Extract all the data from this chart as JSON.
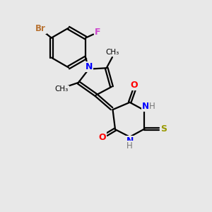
{
  "bg_color": "#e8e8e8",
  "bond_color": "#000000",
  "atom_colors": {
    "Br": "#b87333",
    "F": "#cc44cc",
    "N": "#0000ff",
    "O": "#ff0000",
    "S": "#999900",
    "H": "#777777",
    "C": "#000000"
  },
  "figsize": [
    3.0,
    3.0
  ],
  "dpi": 100
}
